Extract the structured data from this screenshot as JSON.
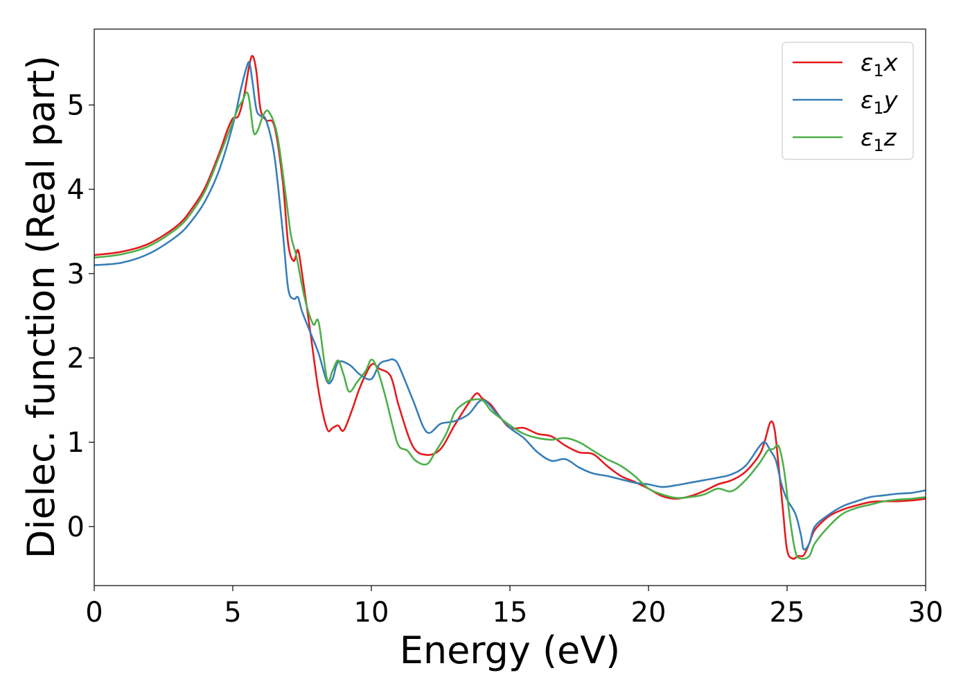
{
  "chart_data": {
    "type": "line",
    "title": "",
    "xlabel": "Energy (eV)",
    "ylabel": "Dielec. function (Real part)",
    "xlim": [
      0,
      30
    ],
    "ylim": [
      -0.7,
      5.9
    ],
    "xticks": [
      0,
      5,
      10,
      15,
      20,
      25,
      30
    ],
    "yticks": [
      0,
      1,
      2,
      3,
      4,
      5
    ],
    "xtick_labels": [
      "0",
      "5",
      "10",
      "15",
      "20",
      "25",
      "30"
    ],
    "ytick_labels": [
      "0",
      "1",
      "2",
      "3",
      "4",
      "5"
    ],
    "grid": false,
    "legend_position": "top-right",
    "series": [
      {
        "name": "ε₁x",
        "legend_base": "ε",
        "legend_sub": "1",
        "legend_var": "x",
        "color": "#e41a1c",
        "x": [
          0,
          1,
          2,
          3,
          3.5,
          4,
          4.5,
          4.8,
          5,
          5.2,
          5.4,
          5.6,
          5.72,
          5.85,
          6,
          6.2,
          6.5,
          6.8,
          7,
          7.2,
          7.35,
          7.5,
          7.8,
          8.1,
          8.4,
          8.6,
          8.8,
          9,
          9.3,
          9.6,
          10,
          10.3,
          10.7,
          11,
          11.5,
          12,
          12.5,
          13,
          13.5,
          13.8,
          14,
          14.3,
          14.6,
          15,
          15.5,
          16,
          16.5,
          17,
          17.5,
          18,
          18.5,
          19,
          19.5,
          20,
          20.5,
          21,
          21.5,
          22,
          22.5,
          23,
          23.5,
          24,
          24.2,
          24.4,
          24.55,
          24.7,
          24.85,
          25,
          25.2,
          25.4,
          25.6,
          25.8,
          26,
          26.5,
          27,
          27.5,
          28,
          28.5,
          29,
          29.5,
          30
        ],
        "y": [
          3.22,
          3.26,
          3.36,
          3.57,
          3.76,
          4.02,
          4.42,
          4.7,
          4.84,
          4.87,
          5.1,
          5.48,
          5.58,
          5.4,
          4.95,
          4.82,
          4.75,
          4.1,
          3.35,
          3.15,
          3.28,
          3.0,
          2.3,
          1.6,
          1.16,
          1.17,
          1.2,
          1.14,
          1.38,
          1.66,
          1.92,
          1.87,
          1.78,
          1.42,
          0.95,
          0.85,
          0.92,
          1.2,
          1.46,
          1.58,
          1.52,
          1.45,
          1.32,
          1.17,
          1.17,
          1.1,
          1.07,
          0.96,
          0.88,
          0.86,
          0.72,
          0.6,
          0.53,
          0.45,
          0.36,
          0.33,
          0.36,
          0.42,
          0.5,
          0.55,
          0.65,
          0.85,
          1.02,
          1.24,
          1.15,
          0.7,
          0.2,
          -0.28,
          -0.38,
          -0.35,
          -0.34,
          -0.2,
          -0.04,
          0.12,
          0.2,
          0.25,
          0.29,
          0.3,
          0.3,
          0.31,
          0.33
        ]
      },
      {
        "name": "ε₁y",
        "legend_base": "ε",
        "legend_sub": "1",
        "legend_var": "y",
        "color": "#377eb8",
        "x": [
          0,
          1,
          2,
          3,
          3.5,
          4,
          4.5,
          5,
          5.3,
          5.5,
          5.6,
          5.7,
          5.85,
          6,
          6.2,
          6.5,
          6.8,
          7,
          7.2,
          7.35,
          7.5,
          7.8,
          8.1,
          8.4,
          8.6,
          8.8,
          9.2,
          9.6,
          10,
          10.3,
          10.6,
          10.8,
          11,
          11.5,
          12,
          12.5,
          13,
          13.5,
          14,
          14.5,
          15,
          15.5,
          16,
          16.5,
          17,
          17.5,
          18,
          18.5,
          19,
          19.5,
          20,
          20.5,
          21,
          21.5,
          22,
          22.5,
          23,
          23.5,
          24,
          24.2,
          24.4,
          24.6,
          24.8,
          25,
          25.3,
          25.5,
          25.6,
          25.8,
          26,
          26.5,
          27,
          27.5,
          28,
          28.5,
          29,
          29.5,
          30
        ],
        "y": [
          3.1,
          3.13,
          3.24,
          3.45,
          3.62,
          3.86,
          4.22,
          4.76,
          5.2,
          5.45,
          5.5,
          5.3,
          4.95,
          4.87,
          4.82,
          4.4,
          3.5,
          2.82,
          2.7,
          2.72,
          2.55,
          2.3,
          2.05,
          1.72,
          1.75,
          1.95,
          1.92,
          1.8,
          1.75,
          1.93,
          1.97,
          1.98,
          1.9,
          1.5,
          1.12,
          1.22,
          1.25,
          1.33,
          1.5,
          1.35,
          1.17,
          1.05,
          0.88,
          0.78,
          0.8,
          0.7,
          0.63,
          0.6,
          0.56,
          0.52,
          0.5,
          0.47,
          0.49,
          0.52,
          0.55,
          0.58,
          0.62,
          0.72,
          0.95,
          1.0,
          0.9,
          0.78,
          0.5,
          0.32,
          0.15,
          -0.1,
          -0.27,
          -0.2,
          0.0,
          0.14,
          0.24,
          0.3,
          0.35,
          0.37,
          0.39,
          0.4,
          0.43
        ]
      },
      {
        "name": "ε₁z",
        "legend_base": "ε",
        "legend_sub": "1",
        "legend_var": "z",
        "color": "#4daf4a",
        "x": [
          0,
          1,
          2,
          3,
          3.5,
          4,
          4.5,
          5,
          5.2,
          5.35,
          5.5,
          5.6,
          5.75,
          5.9,
          6.1,
          6.3,
          6.6,
          6.9,
          7.1,
          7.3,
          7.6,
          7.9,
          8.1,
          8.4,
          8.6,
          8.8,
          9,
          9.2,
          9.5,
          9.8,
          10,
          10.2,
          10.5,
          10.8,
          11,
          11.3,
          11.6,
          12,
          12.3,
          12.7,
          13,
          13.3,
          13.6,
          14,
          14.3,
          14.6,
          15,
          15.5,
          16,
          16.5,
          17,
          17.5,
          18,
          18.5,
          19,
          19.5,
          20,
          20.5,
          21,
          21.5,
          22,
          22.5,
          23,
          23.5,
          24,
          24.3,
          24.5,
          24.7,
          24.9,
          25.1,
          25.3,
          25.5,
          25.8,
          26,
          26.5,
          27,
          27.5,
          28,
          28.5,
          29,
          29.5,
          30
        ],
        "y": [
          3.19,
          3.23,
          3.33,
          3.54,
          3.72,
          3.98,
          4.38,
          4.8,
          4.97,
          5.05,
          5.15,
          5.05,
          4.68,
          4.7,
          4.88,
          4.92,
          4.65,
          3.95,
          3.45,
          3.2,
          2.7,
          2.4,
          2.42,
          1.75,
          1.85,
          1.97,
          1.8,
          1.6,
          1.72,
          1.85,
          1.98,
          1.88,
          1.55,
          1.15,
          0.95,
          0.9,
          0.78,
          0.74,
          0.88,
          1.1,
          1.35,
          1.45,
          1.5,
          1.5,
          1.38,
          1.3,
          1.2,
          1.1,
          1.05,
          1.03,
          1.05,
          1.0,
          0.9,
          0.8,
          0.72,
          0.6,
          0.45,
          0.38,
          0.34,
          0.35,
          0.38,
          0.45,
          0.42,
          0.55,
          0.75,
          0.9,
          0.92,
          0.95,
          0.65,
          0.1,
          -0.3,
          -0.38,
          -0.35,
          -0.2,
          0.0,
          0.15,
          0.22,
          0.26,
          0.3,
          0.32,
          0.33,
          0.35
        ]
      }
    ]
  }
}
